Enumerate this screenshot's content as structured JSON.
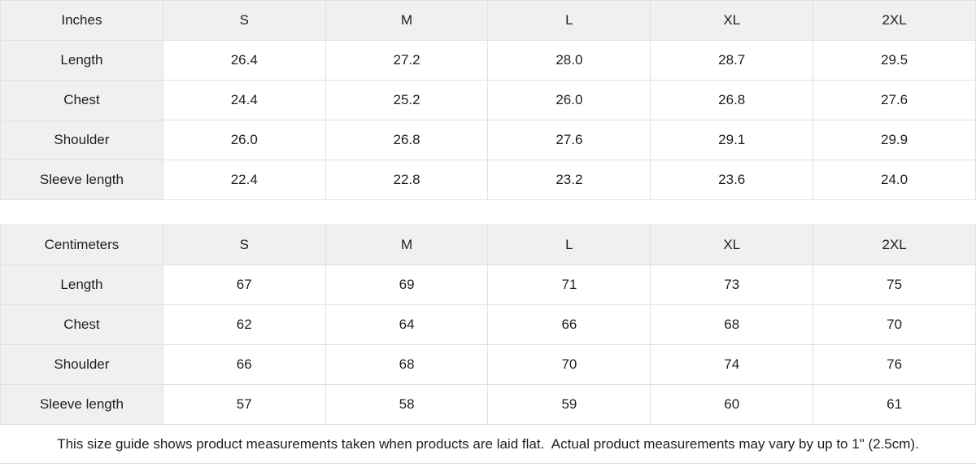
{
  "tables": [
    {
      "unit_label": "Inches",
      "columns": [
        "S",
        "M",
        "L",
        "XL",
        "2XL"
      ],
      "rows": [
        {
          "label": "Length",
          "values": [
            "26.4",
            "27.2",
            "28.0",
            "28.7",
            "29.5"
          ]
        },
        {
          "label": "Chest",
          "values": [
            "24.4",
            "25.2",
            "26.0",
            "26.8",
            "27.6"
          ]
        },
        {
          "label": "Shoulder",
          "values": [
            "26.0",
            "26.8",
            "27.6",
            "29.1",
            "29.9"
          ]
        },
        {
          "label": "Sleeve length",
          "values": [
            "22.4",
            "22.8",
            "23.2",
            "23.6",
            "24.0"
          ]
        }
      ]
    },
    {
      "unit_label": "Centimeters",
      "columns": [
        "S",
        "M",
        "L",
        "XL",
        "2XL"
      ],
      "rows": [
        {
          "label": "Length",
          "values": [
            "67",
            "69",
            "71",
            "73",
            "75"
          ]
        },
        {
          "label": "Chest",
          "values": [
            "62",
            "64",
            "66",
            "68",
            "70"
          ]
        },
        {
          "label": "Shoulder",
          "values": [
            "66",
            "68",
            "70",
            "74",
            "76"
          ]
        },
        {
          "label": "Sleeve length",
          "values": [
            "57",
            "58",
            "59",
            "60",
            "61"
          ]
        }
      ]
    }
  ],
  "footnote": "This size guide shows product measurements taken when products are laid flat.  Actual product measurements may vary by up to 1\" (2.5cm).",
  "colors": {
    "header_bg": "#f0f0f0",
    "border": "#e0e0e0",
    "text": "#1f1f1f"
  }
}
